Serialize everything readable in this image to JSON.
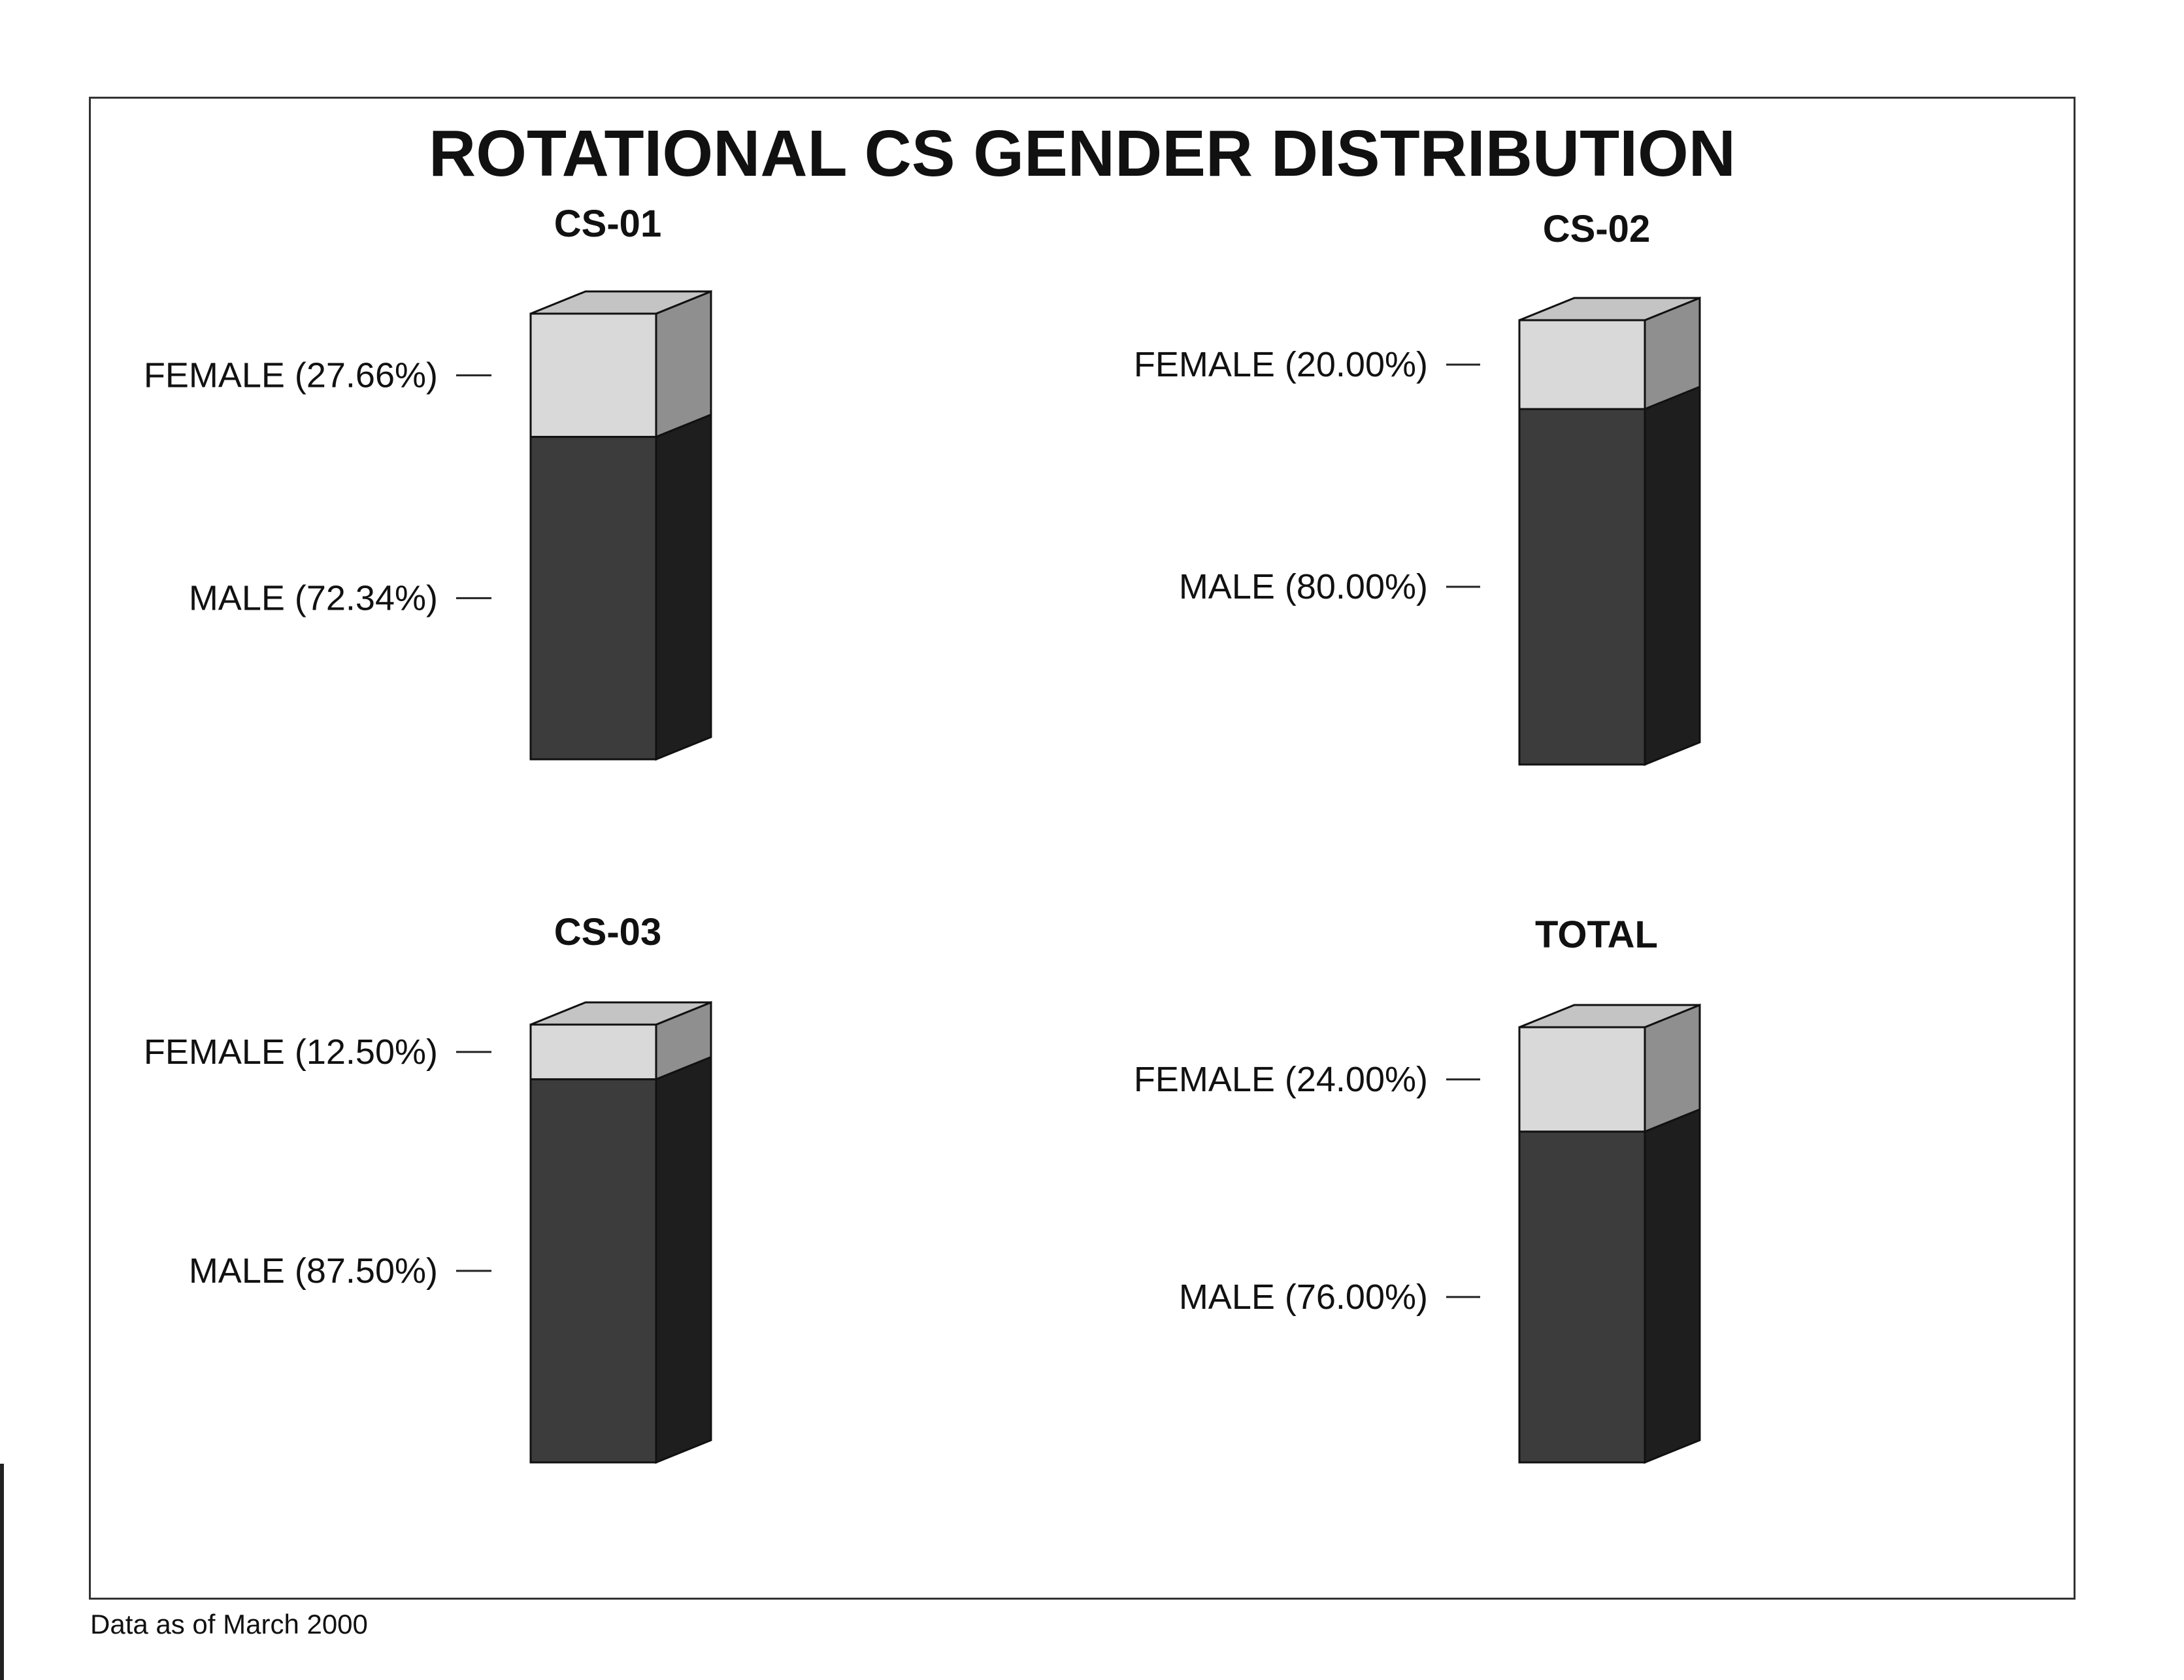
{
  "title": "ROTATIONAL CS GENDER DISTRIBUTION",
  "footnote": "Data as of March 2000",
  "colors": {
    "female_front": "#d9d9d9",
    "female_side": "#8f8f8f",
    "male_front": "#3c3c3c",
    "male_side": "#1e1e1e",
    "top": "#c4c4c4",
    "edge": "#111111"
  },
  "chart_data": [
    {
      "type": "bar",
      "title": "CS-01",
      "stacked": true,
      "three_d": true,
      "ylim": [
        0,
        100
      ],
      "series": [
        {
          "name": "FEMALE",
          "value": 27.66,
          "label": "FEMALE (27.66%)"
        },
        {
          "name": "MALE",
          "value": 72.34,
          "label": "MALE (72.34%)"
        }
      ]
    },
    {
      "type": "bar",
      "title": "CS-02",
      "stacked": true,
      "three_d": true,
      "ylim": [
        0,
        100
      ],
      "series": [
        {
          "name": "FEMALE",
          "value": 20.0,
          "label": "FEMALE (20.00%)"
        },
        {
          "name": "MALE",
          "value": 80.0,
          "label": "MALE (80.00%)"
        }
      ]
    },
    {
      "type": "bar",
      "title": "CS-03",
      "stacked": true,
      "three_d": true,
      "ylim": [
        0,
        100
      ],
      "series": [
        {
          "name": "FEMALE",
          "value": 12.5,
          "label": "FEMALE (12.50%)"
        },
        {
          "name": "MALE",
          "value": 87.5,
          "label": "MALE (87.50%)"
        }
      ]
    },
    {
      "type": "bar",
      "title": "TOTAL",
      "stacked": true,
      "three_d": true,
      "ylim": [
        0,
        100
      ],
      "series": [
        {
          "name": "FEMALE",
          "value": 24.0,
          "label": "FEMALE (24.00%)"
        },
        {
          "name": "MALE",
          "value": 76.0,
          "label": "MALE (76.00%)"
        }
      ]
    }
  ]
}
